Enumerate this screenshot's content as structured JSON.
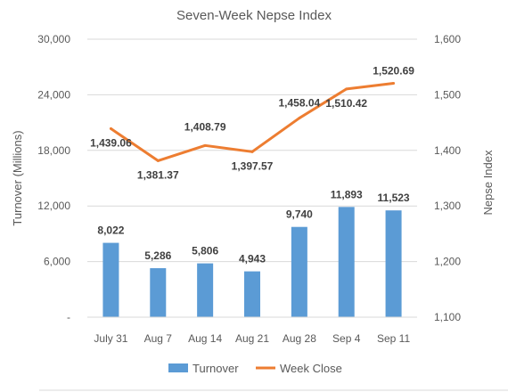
{
  "chart_data": {
    "type": "bar+line",
    "title": "Seven-Week Nepse Index",
    "categories": [
      "July 31",
      "Aug 7",
      "Aug 14",
      "Aug 21",
      "Aug 28",
      "Sep 4",
      "Sep 11"
    ],
    "series": [
      {
        "name": "Turnover",
        "type": "bar",
        "axis": "left",
        "color": "#5B9BD5",
        "values": [
          8022,
          5286,
          5806,
          4943,
          9740,
          11893,
          11523
        ],
        "labels": [
          "8,022",
          "5,286",
          "5,806",
          "4,943",
          "9,740",
          "11,893",
          "11,523"
        ]
      },
      {
        "name": "Week Close",
        "type": "line",
        "axis": "right",
        "color": "#ED7D31",
        "values": [
          1439.06,
          1381.37,
          1408.79,
          1397.57,
          1458.04,
          1510.42,
          1520.69
        ],
        "labels": [
          "1,439.06",
          "1,381.37",
          "1,408.79",
          "1,397.57",
          "1,458.04",
          "1,510.42",
          "1,520.69"
        ]
      }
    ],
    "left_axis": {
      "label": "Turnover (Millions)",
      "ylim": [
        0,
        30000
      ],
      "ticks": [
        0,
        6000,
        12000,
        18000,
        24000,
        30000
      ],
      "tick_labels": [
        "-",
        "6,000",
        "12,000",
        "18,000",
        "24,000",
        "30,000"
      ]
    },
    "right_axis": {
      "label": "Nepse Index",
      "ylim": [
        1100,
        1600
      ],
      "ticks": [
        1100,
        1200,
        1300,
        1400,
        1500,
        1600
      ],
      "tick_labels": [
        "1,100",
        "1,200",
        "1,300",
        "1,400",
        "1,500",
        "1,600"
      ]
    },
    "grid": true,
    "legend": "bottom",
    "gridline_color": "#D9D9D9"
  }
}
